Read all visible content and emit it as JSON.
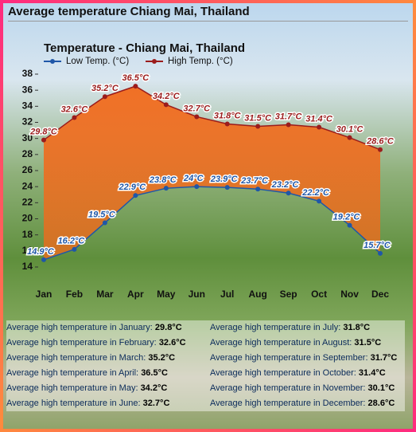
{
  "header": {
    "title": "Average temperature Chiang Mai, Thailand"
  },
  "chart_data": {
    "type": "line",
    "title": "Temperature - Chiang Mai, Thailand",
    "categories": [
      "Jan",
      "Feb",
      "Mar",
      "Apr",
      "May",
      "Jun",
      "Jul",
      "Aug",
      "Sep",
      "Oct",
      "Nov",
      "Dec"
    ],
    "series": [
      {
        "name": "Low Temp. (°C)",
        "color": "#1f57a8",
        "values": [
          14.9,
          16.2,
          19.5,
          22.9,
          23.8,
          24,
          23.9,
          23.7,
          23.2,
          22.2,
          19.2,
          15.7
        ],
        "value_labels": [
          "14.9°C",
          "16.2°C",
          "19.5°C",
          "22.9°C",
          "23.8°C",
          "24°C",
          "23.9°C",
          "23.7°C",
          "23.2°C",
          "22.2°C",
          "19.2°C",
          "15.7°C"
        ]
      },
      {
        "name": "High Temp. (°C)",
        "color": "#9b1c1c",
        "values": [
          29.8,
          32.6,
          35.2,
          36.5,
          34.2,
          32.7,
          31.8,
          31.5,
          31.7,
          31.4,
          30.1,
          28.6
        ],
        "value_labels": [
          "29.8°C",
          "32.6°C",
          "35.2°C",
          "36.5°C",
          "34.2°C",
          "32.7°C",
          "31.8°C",
          "31.5°C",
          "31.7°C",
          "31.4°C",
          "30.1°C",
          "28.6°C"
        ]
      }
    ],
    "fill_between_color": "#f26a1b",
    "ylim": [
      14,
      38
    ],
    "yticks": [
      14,
      16,
      18,
      20,
      22,
      24,
      26,
      28,
      30,
      32,
      34,
      36,
      38
    ],
    "legend": "top-left"
  },
  "list": {
    "columns": [
      [
        {
          "label": "Average high temperature in January:",
          "value": "29.8°C"
        },
        {
          "label": "Average high temperature in February:",
          "value": "32.6°C"
        },
        {
          "label": "Average high temperature in March:",
          "value": "35.2°C"
        },
        {
          "label": "Average high temperature in April:",
          "value": "36.5°C"
        },
        {
          "label": "Average high temperature in May:",
          "value": "34.2°C"
        },
        {
          "label": "Average high temperature in June:",
          "value": "32.7°C"
        }
      ],
      [
        {
          "label": "Average high temperature in July:",
          "value": "31.8°C"
        },
        {
          "label": "Average high temperature in August:",
          "value": "31.5°C"
        },
        {
          "label": "Average high temperature in September:",
          "value": "31.7°C"
        },
        {
          "label": "Average high temperature in October:",
          "value": "31.4°C"
        },
        {
          "label": "Average high temperature in November:",
          "value": "30.1°C"
        },
        {
          "label": "Average high temperature in December:",
          "value": "28.6°C"
        }
      ]
    ]
  }
}
